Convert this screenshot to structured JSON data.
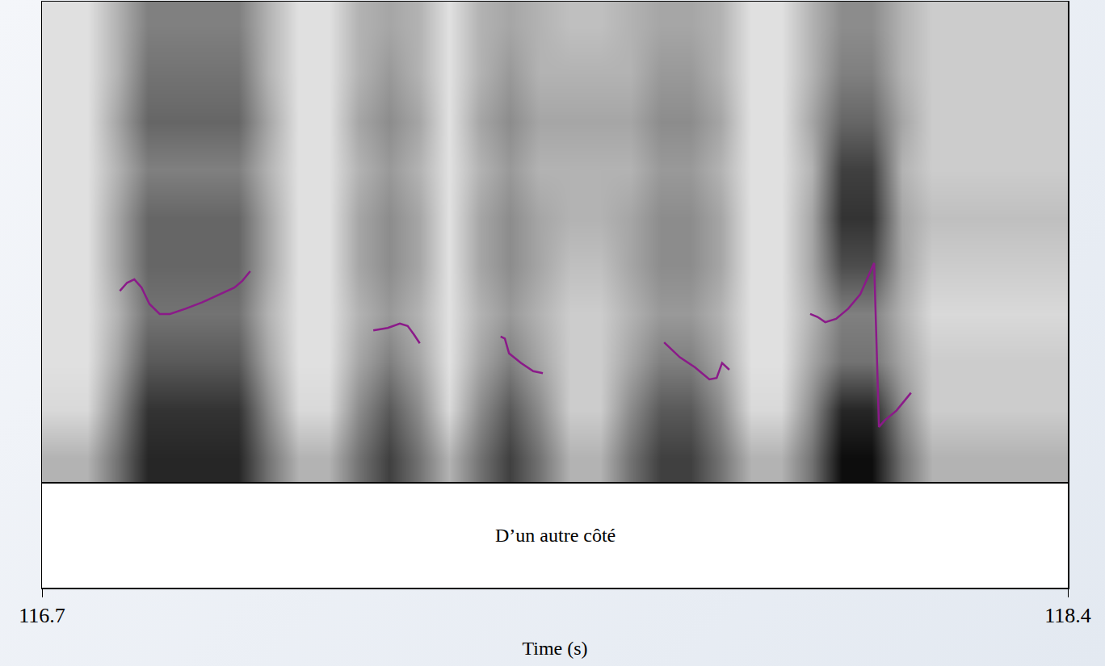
{
  "chart_data": {
    "type": "spectrogram",
    "tier_text": "D’un autre côté",
    "x_label": "Time (s)",
    "xlim": [
      116.7,
      118.4
    ],
    "xticks": [
      116.7,
      118.4
    ],
    "ylim": [
      0,
      1
    ],
    "tick_labels": "x",
    "grid": false,
    "spectrogram": {
      "x": [
        116.725,
        116.775,
        116.825,
        116.875,
        116.925,
        116.975,
        117.025,
        117.075,
        117.125,
        117.175,
        117.225,
        117.275,
        117.325,
        117.375,
        117.425,
        117.475,
        117.525,
        117.575,
        117.625,
        117.675,
        117.725,
        117.775,
        117.825,
        117.875,
        117.925,
        117.975,
        118.025,
        118.075,
        118.125,
        118.175,
        118.225,
        118.275,
        118.325,
        118.375
      ],
      "y": [
        0.05,
        0.15,
        0.25,
        0.35,
        0.45,
        0.55,
        0.65,
        0.75,
        0.85,
        0.95
      ],
      "zlim": [
        0,
        1
      ],
      "z": [
        [
          0.3,
          0.3,
          0.55,
          0.85,
          0.85,
          0.85,
          0.85,
          0.55,
          0.3,
          0.3,
          0.55,
          0.75,
          0.55,
          0.3,
          0.55,
          0.75,
          0.55,
          0.3,
          0.3,
          0.55,
          0.75,
          0.75,
          0.55,
          0.3,
          0.3,
          0.55,
          0.95,
          0.95,
          0.55,
          0.3,
          0.3,
          0.3,
          0.3,
          0.3
        ],
        [
          0.15,
          0.15,
          0.45,
          0.8,
          0.8,
          0.8,
          0.8,
          0.45,
          0.15,
          0.15,
          0.45,
          0.65,
          0.45,
          0.15,
          0.45,
          0.65,
          0.45,
          0.2,
          0.2,
          0.45,
          0.65,
          0.65,
          0.45,
          0.15,
          0.15,
          0.45,
          0.85,
          0.85,
          0.45,
          0.2,
          0.2,
          0.2,
          0.2,
          0.2
        ],
        [
          0.12,
          0.12,
          0.35,
          0.65,
          0.65,
          0.65,
          0.65,
          0.35,
          0.12,
          0.12,
          0.35,
          0.5,
          0.35,
          0.12,
          0.35,
          0.5,
          0.35,
          0.2,
          0.2,
          0.35,
          0.5,
          0.5,
          0.35,
          0.12,
          0.12,
          0.35,
          0.55,
          0.55,
          0.35,
          0.2,
          0.2,
          0.2,
          0.2,
          0.2
        ],
        [
          0.12,
          0.12,
          0.3,
          0.55,
          0.55,
          0.55,
          0.55,
          0.3,
          0.12,
          0.12,
          0.3,
          0.4,
          0.3,
          0.12,
          0.3,
          0.4,
          0.3,
          0.2,
          0.2,
          0.3,
          0.4,
          0.4,
          0.3,
          0.12,
          0.12,
          0.3,
          0.5,
          0.5,
          0.3,
          0.15,
          0.15,
          0.15,
          0.15,
          0.15
        ],
        [
          0.12,
          0.12,
          0.35,
          0.6,
          0.6,
          0.6,
          0.6,
          0.35,
          0.12,
          0.12,
          0.35,
          0.45,
          0.35,
          0.12,
          0.35,
          0.45,
          0.35,
          0.25,
          0.25,
          0.35,
          0.45,
          0.45,
          0.35,
          0.12,
          0.12,
          0.35,
          0.7,
          0.7,
          0.35,
          0.2,
          0.2,
          0.2,
          0.2,
          0.2
        ],
        [
          0.12,
          0.12,
          0.35,
          0.6,
          0.6,
          0.6,
          0.6,
          0.35,
          0.12,
          0.12,
          0.35,
          0.45,
          0.35,
          0.12,
          0.35,
          0.45,
          0.35,
          0.3,
          0.3,
          0.35,
          0.45,
          0.45,
          0.35,
          0.12,
          0.12,
          0.35,
          0.8,
          0.8,
          0.35,
          0.25,
          0.25,
          0.25,
          0.25,
          0.25
        ],
        [
          0.12,
          0.12,
          0.3,
          0.5,
          0.5,
          0.5,
          0.5,
          0.3,
          0.12,
          0.12,
          0.3,
          0.4,
          0.3,
          0.12,
          0.3,
          0.4,
          0.3,
          0.3,
          0.3,
          0.3,
          0.4,
          0.4,
          0.3,
          0.12,
          0.12,
          0.3,
          0.75,
          0.75,
          0.3,
          0.2,
          0.2,
          0.2,
          0.2,
          0.2
        ],
        [
          0.12,
          0.12,
          0.35,
          0.6,
          0.6,
          0.6,
          0.6,
          0.35,
          0.12,
          0.12,
          0.35,
          0.45,
          0.35,
          0.12,
          0.35,
          0.45,
          0.35,
          0.35,
          0.35,
          0.35,
          0.45,
          0.45,
          0.35,
          0.12,
          0.12,
          0.35,
          0.6,
          0.6,
          0.35,
          0.2,
          0.2,
          0.2,
          0.2,
          0.2
        ],
        [
          0.12,
          0.12,
          0.3,
          0.55,
          0.55,
          0.55,
          0.55,
          0.3,
          0.12,
          0.12,
          0.3,
          0.4,
          0.3,
          0.12,
          0.3,
          0.4,
          0.3,
          0.3,
          0.3,
          0.3,
          0.4,
          0.4,
          0.3,
          0.12,
          0.12,
          0.3,
          0.5,
          0.5,
          0.3,
          0.2,
          0.2,
          0.2,
          0.2,
          0.2
        ],
        [
          0.12,
          0.12,
          0.3,
          0.5,
          0.5,
          0.5,
          0.5,
          0.3,
          0.12,
          0.12,
          0.3,
          0.35,
          0.3,
          0.12,
          0.3,
          0.35,
          0.3,
          0.25,
          0.25,
          0.3,
          0.35,
          0.35,
          0.3,
          0.12,
          0.12,
          0.3,
          0.45,
          0.45,
          0.3,
          0.2,
          0.2,
          0.2,
          0.2,
          0.2
        ]
      ]
    },
    "series": [
      {
        "color": "#8b1a89",
        "line_style": "solid",
        "x": [
          116.829,
          116.841,
          116.853,
          116.865,
          116.878,
          116.895,
          116.912,
          116.938,
          116.965,
          116.992,
          117.019,
          117.032,
          117.045,
          null,
          117.249,
          117.273,
          117.293,
          117.306,
          117.316,
          117.326,
          null,
          117.46,
          117.467,
          117.474,
          117.494,
          117.514,
          117.53,
          null,
          117.731,
          117.741,
          117.757,
          117.782,
          117.806,
          117.818,
          117.827,
          117.839,
          null,
          117.973,
          117.985,
          117.998,
          118.016,
          118.036,
          118.056,
          118.079,
          118.087,
          118.096,
          118.116,
          118.14
        ],
        "values": [
          0.398,
          0.415,
          0.422,
          0.405,
          0.371,
          0.35,
          0.35,
          0.361,
          0.374,
          0.39,
          0.405,
          0.419,
          0.439,
          null,
          0.316,
          0.321,
          0.33,
          0.325,
          0.308,
          0.289,
          null,
          0.303,
          0.299,
          0.268,
          0.248,
          0.231,
          0.227,
          null,
          0.291,
          0.279,
          0.26,
          0.239,
          0.214,
          0.217,
          0.248,
          0.234,
          null,
          0.35,
          0.344,
          0.333,
          0.34,
          0.361,
          0.391,
          0.456,
          0.115,
          0.128,
          0.149,
          0.186
        ]
      }
    ]
  }
}
